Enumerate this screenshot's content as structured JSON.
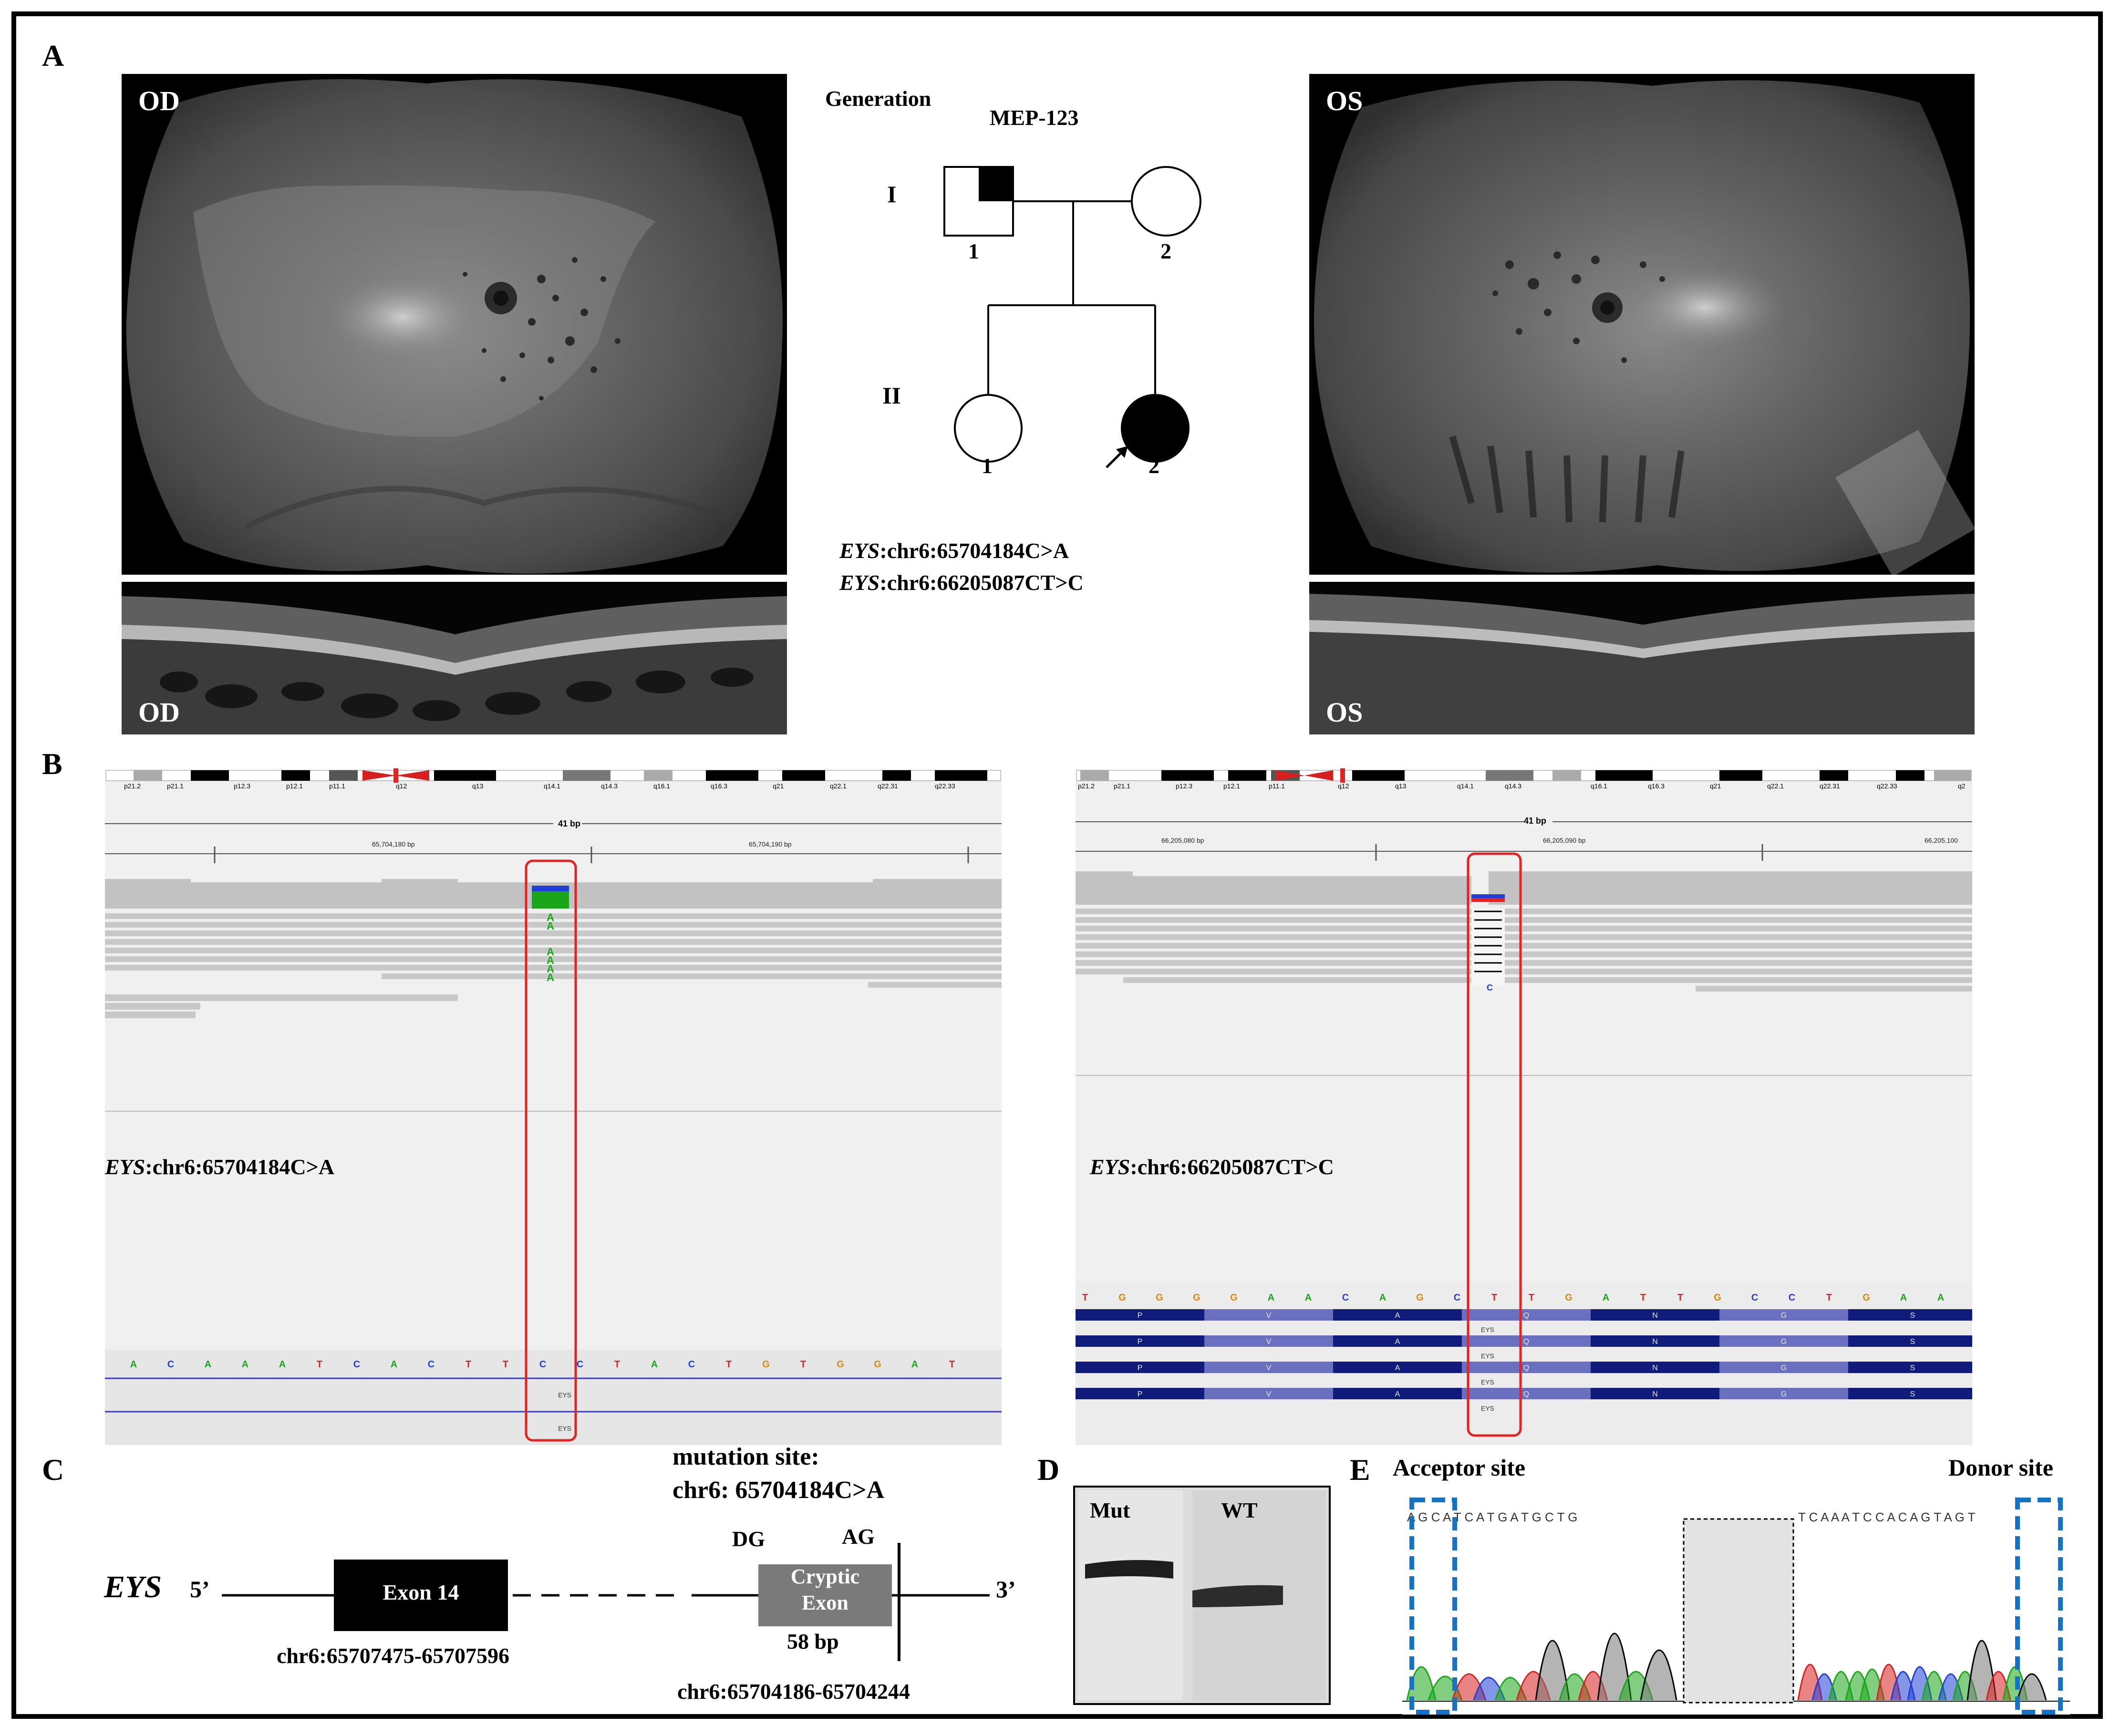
{
  "panel_letters": {
    "a": "A",
    "b": "B",
    "c": "C",
    "d": "D",
    "e": "E"
  },
  "panelA": {
    "od_fundus_label": "OD",
    "os_fundus_label": "OS",
    "od_oct_label": "OD",
    "os_oct_label": "OS",
    "pedigree": {
      "generation_label": "Generation",
      "family_id": "MEP-123",
      "gen_I": "I",
      "gen_II": "II",
      "I1": "1",
      "I2": "2",
      "II1": "1",
      "II2": "2"
    },
    "variant1_gene": "EYS",
    "variant1_rest": ":chr6:65704184C>A",
    "variant2_gene": "EYS",
    "variant2_rest": ":chr6:66205087CT>C"
  },
  "panelB": {
    "left": {
      "bands": [
        "p21.2",
        "p21.1",
        "p12.3",
        "p12.1",
        "p11.1",
        "q12",
        "q13",
        "q14.1",
        "q14.3",
        "q16.1",
        "q16.3",
        "q21",
        "q22.1",
        "q22.31",
        "q22.33"
      ],
      "span": "41 bp",
      "pos1": "65,704,180 bp",
      "pos2": "65,704,190 bp",
      "variant_gene": "EYS",
      "variant_rest": ":chr6:65704184C>A",
      "sequence": [
        "A",
        "C",
        "A",
        "A",
        "A",
        "T",
        "C",
        "A",
        "C",
        "T",
        "T",
        "C",
        "C",
        "T",
        "A",
        "C",
        "T",
        "G",
        "T",
        "G",
        "G",
        "A",
        "T"
      ],
      "alt_allele": "A",
      "gene_label": "EYS"
    },
    "right": {
      "bands": [
        "p21.2",
        "p21.1",
        "p12.3",
        "p12.1",
        "p11.1",
        "q12",
        "q13",
        "q14.1",
        "q14.3",
        "q16.1",
        "q16.3",
        "q21",
        "q22.1",
        "q22.31",
        "q22.33",
        "q2"
      ],
      "span": "41 bp",
      "pos1": "66,205,080 bp",
      "pos2": "66,205,090 bp",
      "pos3": "66,205,100",
      "variant_gene": "EYS",
      "variant_rest": ":chr6:66205087CT>C",
      "sequence": [
        "T",
        "G",
        "G",
        "G",
        "G",
        "A",
        "A",
        "C",
        "A",
        "G",
        "C",
        "T",
        "T",
        "G",
        "A",
        "T",
        "T",
        "G",
        "C",
        "C",
        "T",
        "G",
        "A",
        "A"
      ],
      "amino_acids": [
        "P",
        "V",
        "A",
        "Q",
        "N",
        "G",
        "S"
      ],
      "read_allele": "C",
      "gene_label": "EYS"
    }
  },
  "panelC": {
    "mutation_title_line1": "mutation site:",
    "mutation_title_line2": "chr6: 65704184C>A",
    "gene": "EYS",
    "five_prime": "5’",
    "three_prime": "3’",
    "exon14": "Exon 14",
    "exon14_coords": "chr6:65707475-65707596",
    "dg": "DG",
    "ag": "AG",
    "cryptic_line1": "Cryptic",
    "cryptic_line2": "Exon",
    "cryptic_size": "58 bp",
    "cryptic_coords": "chr6:65704186-65704244"
  },
  "panelD": {
    "mut_label": "Mut",
    "wt_label": "WT"
  },
  "panelE": {
    "acceptor_label": "Acceptor site",
    "donor_label": "Donor site",
    "seq_left": "A G C A T C A T G A T G C T G",
    "seq_right": "T C A A A T C C A C A G T A G T"
  },
  "colors": {
    "A": "#1aa51a",
    "C": "#1f3fd6",
    "G": "#d28a12",
    "T": "#d6201f",
    "red_box": "#e32222",
    "blue_box": "#1672c4",
    "track_navy": "#101c7a",
    "read_gray": "#c8c8c8"
  }
}
